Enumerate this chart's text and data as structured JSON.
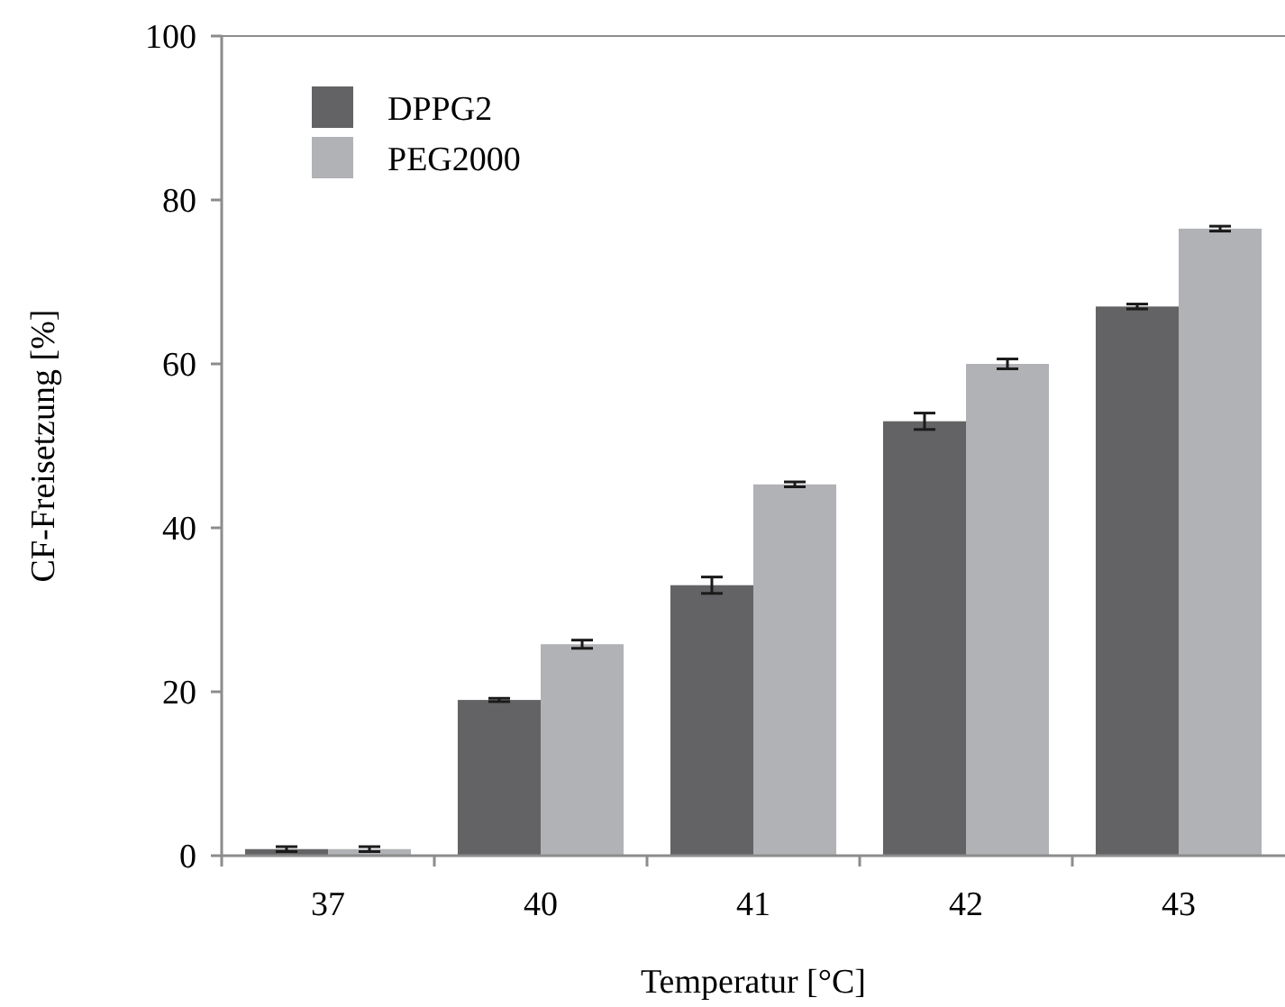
{
  "chart_data": {
    "type": "bar",
    "xlabel": "Temperatur [°C]",
    "ylabel": "CF-Freisetzung [%]",
    "categories": [
      "37",
      "40",
      "41",
      "42",
      "43"
    ],
    "series": [
      {
        "name": "DPPG2",
        "color": "#636365",
        "values": [
          0.8,
          19,
          33,
          53,
          67
        ],
        "errors": [
          0.3,
          0.2,
          1,
          1,
          0.3
        ]
      },
      {
        "name": "PEG2000",
        "color": "#b1b2b5",
        "values": [
          0.8,
          25.8,
          45.3,
          60,
          76.5
        ],
        "errors": [
          0.3,
          0.5,
          0.3,
          0.6,
          0.3
        ]
      }
    ],
    "ylim": [
      0,
      100
    ],
    "yticks": [
      0,
      20,
      40,
      60,
      80,
      100
    ],
    "grid": false,
    "legend": "top left"
  }
}
